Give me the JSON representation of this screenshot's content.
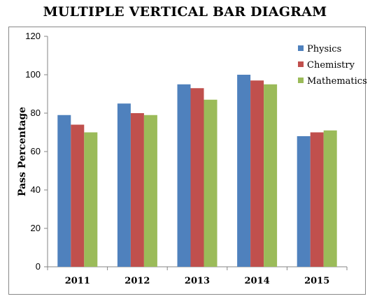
{
  "chart_data": {
    "type": "bar",
    "title": "MULTIPLE VERTICAL BAR DIAGRAM",
    "xlabel": "",
    "ylabel": "Pass Percentage",
    "ylim": [
      0,
      120
    ],
    "yticks": [
      0,
      20,
      40,
      60,
      80,
      100,
      120
    ],
    "grid": false,
    "legend_position": "right",
    "categories": [
      "2011",
      "2012",
      "2013",
      "2014",
      "2015"
    ],
    "series": [
      {
        "name": "Physics",
        "color": "#4F81BD",
        "values": [
          79,
          85,
          95,
          100,
          68
        ]
      },
      {
        "name": "Chemistry",
        "color": "#C0504D",
        "values": [
          74,
          80,
          93,
          97,
          70
        ]
      },
      {
        "name": "Mathematics",
        "color": "#9BBB59",
        "values": [
          70,
          79,
          87,
          95,
          71
        ]
      }
    ]
  }
}
